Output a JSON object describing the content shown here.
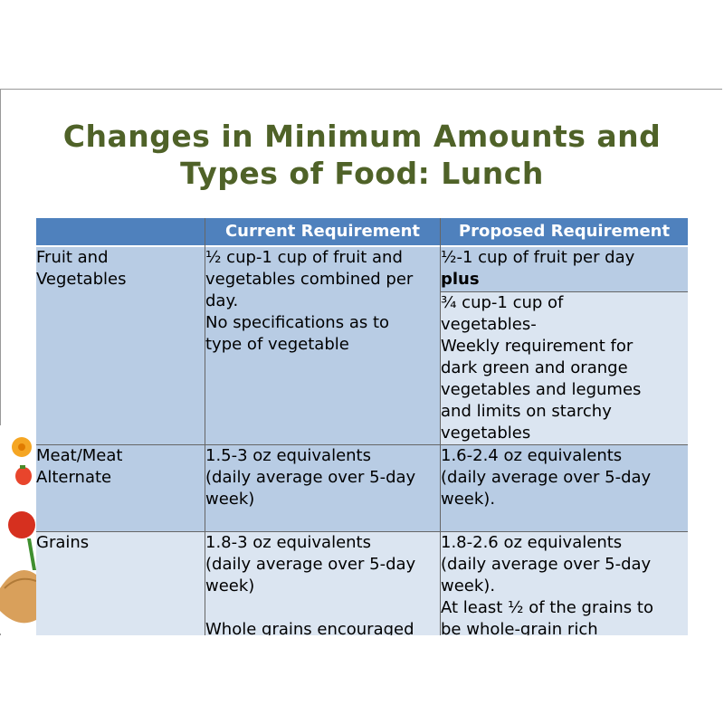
{
  "title": "Changes in Minimum Amounts and Types of Food: Lunch",
  "table": {
    "headers": [
      "",
      "Current Requirement",
      "Proposed Requirement"
    ],
    "rows": [
      {
        "label": "Fruit and\nVegetables",
        "current": "½ cup-1 cup of fruit and\nvegetables combined per\nday.\n No specifications as to\ntype of vegetable",
        "proposed_a_text": "½-1 cup of fruit per day",
        "proposed_a_bold": "plus",
        "proposed_b": "¾ cup-1 cup of\nvegetables-\nWeekly requirement for\ndark green and orange\nvegetables and legumes\nand limits on starchy\nvegetables"
      },
      {
        "label": "Meat/Meat\nAlternate",
        "current": "1.5-3 oz equivalents\n(daily average over 5-day\nweek)",
        "proposed": "1.6-2.4 oz equivalents\n(daily average over 5-day\nweek)."
      },
      {
        "label": "Grains",
        "current": "1.8-3 oz equivalents\n(daily average over 5-day\nweek)\n\nWhole grains encouraged",
        "proposed": "1.8-2.6 oz equivalents\n(daily average over 5-day\nweek).\n At least ½ of the grains to\nbe whole-grain rich"
      }
    ]
  },
  "colors": {
    "title": "#4f6228",
    "header": "#4f81bd",
    "row_dark": "#b8cce4",
    "row_light": "#dbe5f1"
  },
  "decoration": "fruit-vegetable-image"
}
